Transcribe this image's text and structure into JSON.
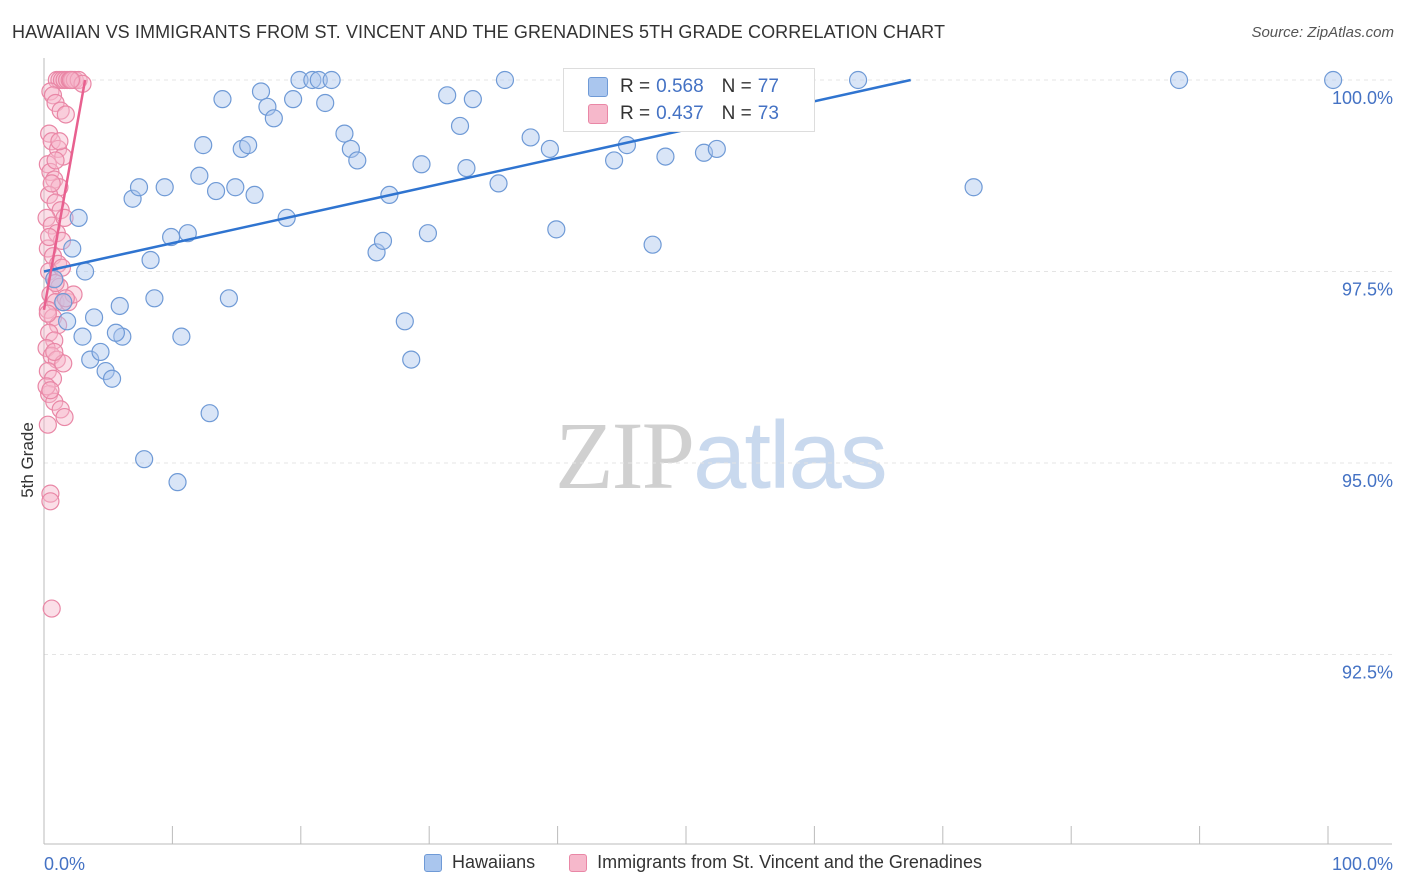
{
  "title": "HAWAIIAN VS IMMIGRANTS FROM ST. VINCENT AND THE GRENADINES 5TH GRADE CORRELATION CHART",
  "source": "Source: ZipAtlas.com",
  "watermark": {
    "part1": "ZIP",
    "part2": "atlas"
  },
  "colors": {
    "blue_fill": "#aac6ee",
    "blue_stroke": "#6f9ad6",
    "blue_line": "#2f74d0",
    "pink_fill": "#f6b8cb",
    "pink_stroke": "#e987a6",
    "pink_line": "#e8608f",
    "grid": "#e4e4e4",
    "tick_label": "#4472c4"
  },
  "legend": {
    "rows": [
      {
        "r_label": "R =",
        "r_value": "0.568",
        "n_label": "N =",
        "n_value": "77"
      },
      {
        "r_label": "R =",
        "r_value": "0.437",
        "n_label": "N =",
        "n_value": "73"
      }
    ]
  },
  "chart_data": {
    "type": "scatter",
    "title": "HAWAIIAN VS IMMIGRANTS FROM ST. VINCENT AND THE GRENADINES 5TH GRADE CORRELATION CHART",
    "xlabel": "",
    "ylabel": "5th Grade",
    "xlim": [
      0,
      105
    ],
    "ylim": [
      90.3,
      100.45
    ],
    "x_tick_labels": [
      {
        "value": 0,
        "label": "0.0%"
      },
      {
        "value": 100,
        "label": "100.0%"
      }
    ],
    "x_minor_ticks": [
      0,
      10,
      20,
      30,
      40,
      50,
      60,
      70,
      80,
      90,
      100
    ],
    "y_ticks": [
      {
        "value": 100.0,
        "label": "100.0%"
      },
      {
        "value": 97.5,
        "label": "97.5%"
      },
      {
        "value": 95.0,
        "label": "95.0%"
      },
      {
        "value": 92.5,
        "label": "92.5%"
      }
    ],
    "grid": true,
    "legend_position": "top-center",
    "series": [
      {
        "name": "Hawaiians",
        "color": "#aac6ee",
        "trend": {
          "x": [
            0,
            67.5
          ],
          "y": [
            97.5,
            100.0
          ]
        },
        "points": [
          [
            1.5,
            97.1
          ],
          [
            1.8,
            96.85
          ],
          [
            3,
            96.65
          ],
          [
            3.2,
            97.5
          ],
          [
            3.6,
            96.35
          ],
          [
            3.9,
            96.9
          ],
          [
            4.4,
            96.45
          ],
          [
            4.8,
            96.2
          ],
          [
            5.3,
            96.1
          ],
          [
            5.9,
            97.05
          ],
          [
            6.1,
            96.65
          ],
          [
            6.9,
            98.45
          ],
          [
            7.4,
            98.6
          ],
          [
            7.8,
            95.05
          ],
          [
            8.3,
            97.65
          ],
          [
            8.6,
            97.15
          ],
          [
            9.4,
            98.6
          ],
          [
            9.9,
            97.95
          ],
          [
            10.4,
            94.75
          ],
          [
            10.7,
            96.65
          ],
          [
            11.2,
            98.0
          ],
          [
            12.1,
            98.75
          ],
          [
            12.4,
            99.15
          ],
          [
            12.9,
            95.65
          ],
          [
            13.4,
            98.55
          ],
          [
            13.9,
            99.75
          ],
          [
            14.4,
            97.15
          ],
          [
            14.9,
            98.6
          ],
          [
            15.4,
            99.1
          ],
          [
            15.9,
            99.15
          ],
          [
            16.4,
            98.5
          ],
          [
            16.9,
            99.85
          ],
          [
            17.4,
            99.65
          ],
          [
            17.9,
            99.5
          ],
          [
            18.9,
            98.2
          ],
          [
            19.4,
            99.75
          ],
          [
            19.9,
            100.0
          ],
          [
            20.9,
            100.0
          ],
          [
            21.4,
            100.0
          ],
          [
            21.9,
            99.7
          ],
          [
            22.4,
            100.0
          ],
          [
            23.4,
            99.3
          ],
          [
            23.9,
            99.1
          ],
          [
            24.4,
            98.95
          ],
          [
            25.9,
            97.75
          ],
          [
            26.4,
            97.9
          ],
          [
            26.9,
            98.5
          ],
          [
            28.1,
            96.85
          ],
          [
            28.6,
            96.35
          ],
          [
            29.4,
            98.9
          ],
          [
            29.9,
            98.0
          ],
          [
            31.4,
            99.8
          ],
          [
            32.4,
            99.4
          ],
          [
            32.9,
            98.85
          ],
          [
            33.4,
            99.75
          ],
          [
            35.4,
            98.65
          ],
          [
            35.9,
            100.0
          ],
          [
            37.9,
            99.25
          ],
          [
            39.4,
            99.1
          ],
          [
            39.9,
            98.05
          ],
          [
            41.4,
            99.75
          ],
          [
            42.4,
            99.8
          ],
          [
            44.4,
            98.95
          ],
          [
            45.4,
            99.15
          ],
          [
            47.4,
            97.85
          ],
          [
            48.4,
            99.0
          ],
          [
            51.4,
            99.05
          ],
          [
            52.4,
            99.1
          ],
          [
            55.4,
            100.0
          ],
          [
            63.4,
            100.0
          ],
          [
            72.4,
            98.6
          ],
          [
            88.4,
            100.0
          ],
          [
            100.4,
            100.0
          ],
          [
            0.8,
            97.4
          ],
          [
            2.2,
            97.8
          ],
          [
            2.7,
            98.2
          ],
          [
            5.6,
            96.7
          ]
        ]
      },
      {
        "name": "Immigrants from St. Vincent and the Grenadines",
        "color": "#f6b8cb",
        "trend": {
          "x": [
            0,
            3.2
          ],
          "y": [
            97.0,
            100.0
          ]
        },
        "points": [
          [
            1.0,
            100.0
          ],
          [
            1.2,
            100.0
          ],
          [
            1.4,
            100.0
          ],
          [
            1.6,
            100.0
          ],
          [
            1.8,
            100.0
          ],
          [
            2.0,
            100.0
          ],
          [
            2.2,
            100.0
          ],
          [
            2.4,
            100.0
          ],
          [
            2.7,
            100.0
          ],
          [
            3.0,
            99.95
          ],
          [
            0.5,
            99.85
          ],
          [
            0.7,
            99.8
          ],
          [
            0.9,
            99.7
          ],
          [
            1.3,
            99.6
          ],
          [
            1.7,
            99.55
          ],
          [
            0.4,
            99.3
          ],
          [
            0.6,
            99.2
          ],
          [
            1.1,
            99.1
          ],
          [
            1.5,
            99.0
          ],
          [
            0.3,
            98.9
          ],
          [
            0.5,
            98.8
          ],
          [
            0.8,
            98.7
          ],
          [
            1.2,
            98.6
          ],
          [
            0.4,
            98.5
          ],
          [
            0.9,
            98.4
          ],
          [
            1.3,
            98.3
          ],
          [
            0.2,
            98.2
          ],
          [
            0.6,
            98.1
          ],
          [
            1.0,
            98.0
          ],
          [
            1.4,
            97.9
          ],
          [
            0.3,
            97.8
          ],
          [
            0.7,
            97.7
          ],
          [
            1.1,
            97.6
          ],
          [
            0.4,
            97.5
          ],
          [
            0.8,
            97.4
          ],
          [
            1.2,
            97.3
          ],
          [
            0.5,
            97.2
          ],
          [
            0.9,
            97.1
          ],
          [
            1.5,
            97.1
          ],
          [
            0.3,
            97.0
          ],
          [
            0.7,
            96.9
          ],
          [
            1.1,
            96.8
          ],
          [
            0.4,
            96.7
          ],
          [
            0.8,
            96.6
          ],
          [
            0.2,
            96.5
          ],
          [
            0.6,
            96.4
          ],
          [
            1.0,
            96.35
          ],
          [
            1.5,
            96.3
          ],
          [
            0.3,
            96.2
          ],
          [
            0.7,
            96.1
          ],
          [
            0.4,
            95.9
          ],
          [
            0.8,
            95.8
          ],
          [
            1.3,
            95.7
          ],
          [
            1.6,
            95.6
          ],
          [
            0.3,
            95.5
          ],
          [
            0.5,
            94.6
          ],
          [
            0.5,
            94.5
          ],
          [
            0.6,
            93.1
          ],
          [
            0.2,
            96.0
          ],
          [
            1.9,
            97.1
          ],
          [
            2.3,
            97.2
          ],
          [
            0.9,
            98.95
          ],
          [
            1.6,
            98.2
          ],
          [
            0.6,
            98.65
          ],
          [
            1.2,
            99.2
          ],
          [
            0.4,
            97.95
          ],
          [
            0.9,
            97.35
          ],
          [
            1.4,
            97.55
          ],
          [
            0.3,
            96.95
          ],
          [
            0.8,
            96.45
          ],
          [
            0.5,
            95.95
          ],
          [
            1.7,
            97.15
          ],
          [
            2.1,
            100.0
          ]
        ]
      }
    ]
  }
}
